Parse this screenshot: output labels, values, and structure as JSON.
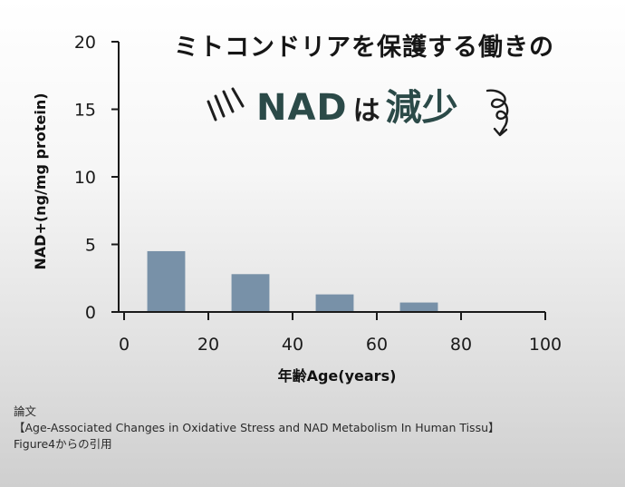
{
  "headline": "ミトコンドリアを保護する働きの",
  "subhead": {
    "main": "NAD",
    "particle": "は",
    "emphasis": "減少"
  },
  "chart_data": {
    "type": "bar",
    "x": [
      10,
      30,
      50,
      70
    ],
    "values": [
      4.5,
      2.8,
      1.3,
      0.7
    ],
    "bar_width": 9,
    "xlabel": "年齢Age(years)",
    "ylabel": "NAD+(ng/mg protein)",
    "xlim": [
      0,
      100
    ],
    "ylim": [
      0,
      20
    ],
    "xticks": [
      "0",
      "20",
      "40",
      "60",
      "80",
      "100"
    ],
    "yticks": [
      "0",
      "5",
      "10",
      "15",
      "20"
    ],
    "bar_color": "#7891a8",
    "grid": false
  },
  "footer": {
    "line1": "論文",
    "line2": "【Age-Associated Changes in Oxidative Stress and NAD Metabolism In Human Tissu】",
    "line3": "Figure4からの引用"
  }
}
